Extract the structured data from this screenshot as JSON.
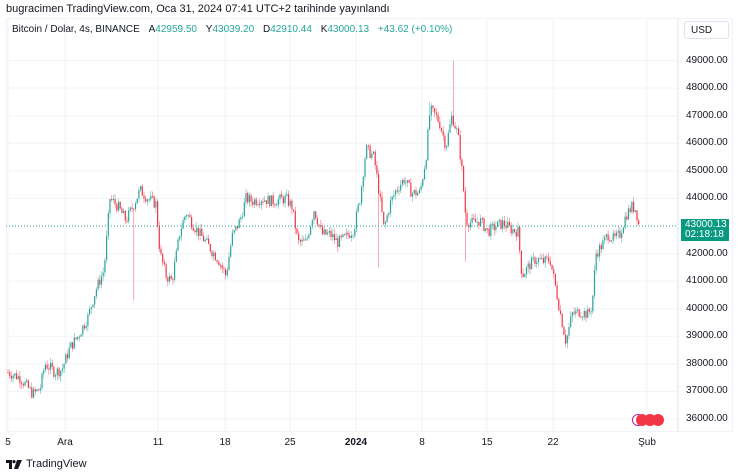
{
  "header": {
    "published": "bugracimen TradingView.com, Oca 31, 2024 07:41 UTC+2 tarihinde yayınlandı"
  },
  "legend": {
    "symbol": "Bitcoin / Dolar, 4s, BINANCE",
    "open_label": "A",
    "open": "42959.50",
    "high_label": "Y",
    "high": "43039.20",
    "low_label": "D",
    "low": "42910.44",
    "close_label": "K",
    "close": "43000.13",
    "change": "+43.62 (+0.10%)"
  },
  "currency_button": "USD",
  "price_tag": {
    "price": "43000.13",
    "countdown": "02:18:18"
  },
  "brand": {
    "name": "TradingView"
  },
  "colors": {
    "up": "#26a69a",
    "down": "#f23645",
    "tag": "#089981",
    "grid": "#f0f3fa"
  },
  "chart_data": {
    "type": "candlestick",
    "title": "Bitcoin / Dolar, 4s, BINANCE",
    "xlabel": "",
    "ylabel": "USD",
    "ylim": [
      35500,
      49500
    ],
    "y_ticks": [
      "49000.00",
      "48000.00",
      "47000.00",
      "46000.00",
      "45000.00",
      "44000.00",
      "42000.00",
      "41000.00",
      "40000.00",
      "39000.00",
      "38000.00",
      "37000.00",
      "36000.00"
    ],
    "x_ticks": [
      {
        "label": "5",
        "x": 8
      },
      {
        "label": "Ara",
        "x": 65
      },
      {
        "label": "11",
        "x": 158
      },
      {
        "label": "18",
        "x": 225
      },
      {
        "label": "25",
        "x": 290
      },
      {
        "label": "2024",
        "x": 356,
        "bold": true
      },
      {
        "label": "8",
        "x": 422
      },
      {
        "label": "15",
        "x": 487
      },
      {
        "label": "22",
        "x": 553
      },
      {
        "label": "Şub",
        "x": 647
      }
    ],
    "grid": true,
    "last_price": 43000.13,
    "approx_path": [
      [
        8,
        37700
      ],
      [
        20,
        37500
      ],
      [
        33,
        36900
      ],
      [
        40,
        37100
      ],
      [
        45,
        38000
      ],
      [
        55,
        37700
      ],
      [
        62,
        37800
      ],
      [
        70,
        38600
      ],
      [
        78,
        39000
      ],
      [
        88,
        39700
      ],
      [
        96,
        40700
      ],
      [
        104,
        41400
      ],
      [
        110,
        44000
      ],
      [
        118,
        43700
      ],
      [
        126,
        43200
      ],
      [
        134,
        43800
      ],
      [
        140,
        44300
      ],
      [
        148,
        44000
      ],
      [
        156,
        43800
      ],
      [
        160,
        42000
      ],
      [
        166,
        41200
      ],
      [
        172,
        41000
      ],
      [
        180,
        42800
      ],
      [
        186,
        43500
      ],
      [
        194,
        43000
      ],
      [
        202,
        42600
      ],
      [
        210,
        42200
      ],
      [
        218,
        41800
      ],
      [
        226,
        41200
      ],
      [
        232,
        42600
      ],
      [
        240,
        43200
      ],
      [
        246,
        44000
      ],
      [
        252,
        43900
      ],
      [
        262,
        44000
      ],
      [
        272,
        43900
      ],
      [
        286,
        44000
      ],
      [
        292,
        43700
      ],
      [
        298,
        42400
      ],
      [
        306,
        42400
      ],
      [
        314,
        43600
      ],
      [
        322,
        42700
      ],
      [
        330,
        42700
      ],
      [
        338,
        42400
      ],
      [
        346,
        42600
      ],
      [
        354,
        42900
      ],
      [
        360,
        44000
      ],
      [
        366,
        45800
      ],
      [
        374,
        45500
      ],
      [
        378,
        44500
      ],
      [
        384,
        42900
      ],
      [
        390,
        43800
      ],
      [
        396,
        44300
      ],
      [
        404,
        44700
      ],
      [
        412,
        44200
      ],
      [
        420,
        44200
      ],
      [
        426,
        45500
      ],
      [
        430,
        47200
      ],
      [
        436,
        47000
      ],
      [
        440,
        46700
      ],
      [
        446,
        45900
      ],
      [
        452,
        47000
      ],
      [
        458,
        46300
      ],
      [
        462,
        45000
      ],
      [
        466,
        43200
      ],
      [
        472,
        43100
      ],
      [
        480,
        43200
      ],
      [
        488,
        42800
      ],
      [
        496,
        43000
      ],
      [
        504,
        43100
      ],
      [
        510,
        42900
      ],
      [
        518,
        42800
      ],
      [
        522,
        41200
      ],
      [
        530,
        41600
      ],
      [
        536,
        41800
      ],
      [
        544,
        41700
      ],
      [
        550,
        41800
      ],
      [
        556,
        40700
      ],
      [
        560,
        39900
      ],
      [
        566,
        38800
      ],
      [
        572,
        39800
      ],
      [
        580,
        39900
      ],
      [
        588,
        39800
      ],
      [
        592,
        40100
      ],
      [
        596,
        42000
      ],
      [
        602,
        42300
      ],
      [
        608,
        42700
      ],
      [
        614,
        42500
      ],
      [
        620,
        42700
      ],
      [
        626,
        43400
      ],
      [
        632,
        43700
      ],
      [
        636,
        43600
      ],
      [
        639,
        43000
      ]
    ],
    "notable_wicks": [
      {
        "x": 134,
        "low": 40300
      },
      {
        "x": 430,
        "high": 47500
      },
      {
        "x": 454,
        "high": 49000
      },
      {
        "x": 466,
        "low": 41700
      },
      {
        "x": 566,
        "low": 38600
      },
      {
        "x": 378,
        "low": 41500
      }
    ]
  }
}
